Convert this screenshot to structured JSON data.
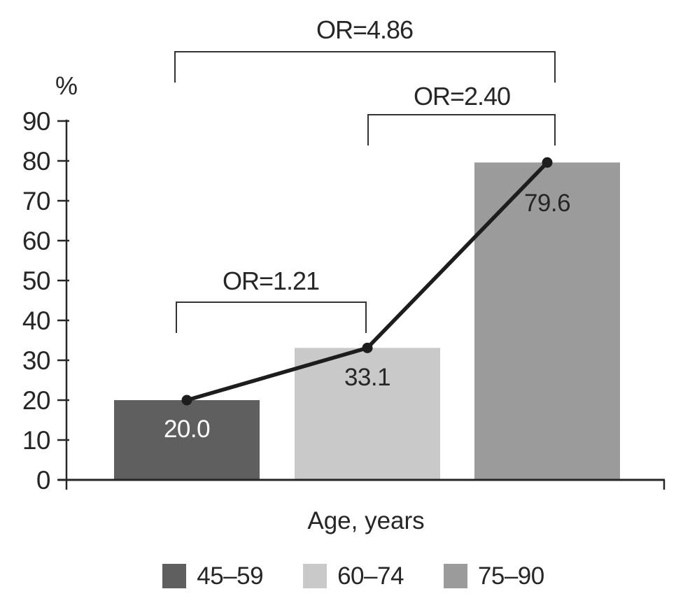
{
  "chart_data": {
    "type": "bar",
    "categories": [
      "45–59",
      "60–74",
      "75–90"
    ],
    "values": [
      20.0,
      33.1,
      79.6
    ],
    "value_labels": [
      "20.0",
      "33.1",
      "79.6"
    ],
    "xlabel": "Age, years",
    "ylabel": "%",
    "ylim": [
      0,
      90
    ],
    "yticks": [
      0,
      10,
      20,
      30,
      40,
      50,
      60,
      70,
      80,
      90
    ],
    "grid": false,
    "bar_colors": [
      "#5f5f5f",
      "#c9c9c9",
      "#9b9b9b"
    ],
    "value_label_colors": [
      "#ffffff",
      "#262626",
      "#262626"
    ],
    "axis_color": "#262626",
    "overlay_line": {
      "type": "line-with-markers",
      "color": "#1d1d1d",
      "values": [
        20.0,
        33.1,
        79.6
      ]
    },
    "comparisons": [
      {
        "label": "OR=1.21",
        "from": 0,
        "to": 1
      },
      {
        "label": "OR=2.40",
        "from": 1,
        "to": 2
      },
      {
        "label": "OR=4.86",
        "from": 0,
        "to": 2
      }
    ],
    "legend": {
      "position": "bottom",
      "entries": [
        {
          "label": "45–59",
          "color": "#5f5f5f"
        },
        {
          "label": "60–74",
          "color": "#c9c9c9"
        },
        {
          "label": "75–90",
          "color": "#9b9b9b"
        }
      ]
    }
  }
}
